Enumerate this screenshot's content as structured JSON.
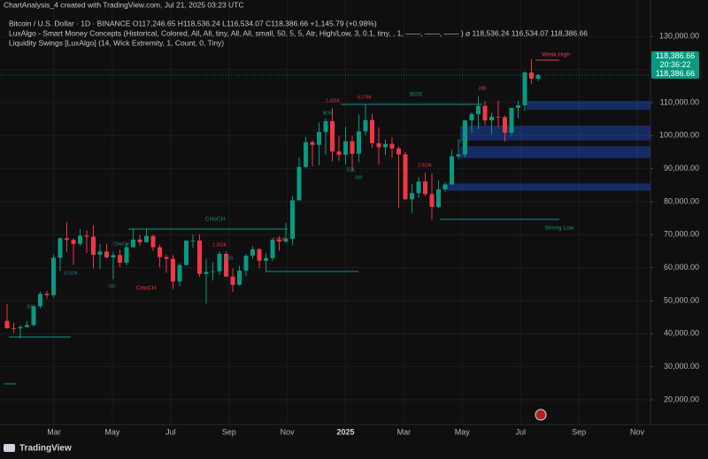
{
  "chart_data": {
    "type": "candlestick",
    "title": "ChartAnalysis_4 created with TradingView.com, Jul 21, 2025 03:23 UTC",
    "legend": [
      "Bitcoin / U.S. Dollar · 1D · BINANCE   O117,246.65 H118,536.24 L116,534.07 C118,386.66 +1,145.79 (+0.98%)",
      "LuxAlgo - Smart Money Concepts (Historical, Colored, All, All, tiny, All, All, small, 50, 5, 5, Atr, High/Low, 3, 0.1, tiny, , 1, ——, ——, —— )  ⌀  118,536.24  116,534.07  118,386.66",
      "Liquidity Swings [LuxAlgo] (14, Wick Extremity, 1, Count, 0, Tiny)"
    ],
    "footer": "TradingView",
    "up_color": "#089981",
    "down_color": "#f23645",
    "grid": true,
    "ylim": [
      12500,
      140000
    ],
    "yticks": [
      {
        "value": 20000,
        "label": "20,000.00"
      },
      {
        "value": 30000,
        "label": "30,000.00"
      },
      {
        "value": 40000,
        "label": "40,000.00"
      },
      {
        "value": 50000,
        "label": "50,000.00"
      },
      {
        "value": 60000,
        "label": "60,000.00"
      },
      {
        "value": 70000,
        "label": "70,000.00"
      },
      {
        "value": 80000,
        "label": "80,000.00"
      },
      {
        "value": 90000,
        "label": "90,000.00"
      },
      {
        "value": 100000,
        "label": "100,000.00"
      },
      {
        "value": 110000,
        "label": "110,000.00"
      },
      {
        "value": 120000,
        "label": "120,000.00"
      },
      {
        "value": 130000,
        "label": "130,000.00"
      }
    ],
    "xlabels": [
      "Mar",
      "May",
      "Jul",
      "Sep",
      "Nov",
      "2025",
      "Mar",
      "May",
      "Jul",
      "Sep",
      "Nov"
    ],
    "last_price": {
      "value": 118386.66,
      "label": "118,386.66"
    },
    "countdown": "20:36:22",
    "ohlc": [
      [
        43900,
        48900,
        41500,
        41700
      ],
      [
        41700,
        43400,
        40300,
        41600
      ],
      [
        41600,
        42600,
        38500,
        42000
      ],
      [
        42000,
        43800,
        41900,
        42600
      ],
      [
        42600,
        48500,
        42300,
        48300
      ],
      [
        48300,
        52800,
        47700,
        52100
      ],
      [
        52100,
        53000,
        50600,
        51700
      ],
      [
        51700,
        64000,
        50900,
        63000
      ],
      [
        63000,
        69200,
        59000,
        68900
      ],
      [
        68900,
        73800,
        64700,
        68400
      ],
      [
        68400,
        68900,
        60800,
        67200
      ],
      [
        67200,
        71700,
        66600,
        69700
      ],
      [
        69700,
        71300,
        64500,
        69400
      ],
      [
        69400,
        72800,
        59700,
        63900
      ],
      [
        63900,
        67200,
        59600,
        64900
      ],
      [
        64900,
        67200,
        62800,
        63100
      ],
      [
        63100,
        64800,
        56500,
        63800
      ],
      [
        63800,
        65500,
        60200,
        61500
      ],
      [
        61500,
        67400,
        60700,
        66200
      ],
      [
        66200,
        71900,
        66100,
        68500
      ],
      [
        68500,
        70000,
        66600,
        67700
      ],
      [
        67700,
        72000,
        67600,
        69600
      ],
      [
        69600,
        70000,
        65100,
        66200
      ],
      [
        66200,
        67000,
        60100,
        63200
      ],
      [
        63200,
        63900,
        58400,
        62700
      ],
      [
        62700,
        63800,
        53500,
        55800
      ],
      [
        55800,
        61400,
        54300,
        60800
      ],
      [
        60800,
        68300,
        60700,
        68200
      ],
      [
        68200,
        70000,
        65900,
        68200
      ],
      [
        68200,
        70100,
        57200,
        58100
      ],
      [
        58100,
        62700,
        49100,
        58700
      ],
      [
        58700,
        61700,
        56100,
        58900
      ],
      [
        58900,
        65000,
        57800,
        64200
      ],
      [
        64200,
        64900,
        57200,
        57300
      ],
      [
        57300,
        59800,
        52600,
        54800
      ],
      [
        54800,
        60600,
        54600,
        59100
      ],
      [
        59100,
        64100,
        57500,
        63600
      ],
      [
        63600,
        66500,
        62700,
        65600
      ],
      [
        65600,
        66000,
        59800,
        62100
      ],
      [
        62100,
        64400,
        58900,
        62900
      ],
      [
        62900,
        69000,
        62100,
        68400
      ],
      [
        68400,
        69500,
        65100,
        67900
      ],
      [
        67900,
        73600,
        67500,
        68800
      ],
      [
        68800,
        81800,
        66800,
        80400
      ],
      [
        80400,
        93400,
        80300,
        90500
      ],
      [
        90500,
        99600,
        90100,
        98000
      ],
      [
        98000,
        98600,
        90700,
        97200
      ],
      [
        97200,
        104000,
        91000,
        101100
      ],
      [
        101100,
        105200,
        94200,
        104400
      ],
      [
        104400,
        108300,
        92200,
        95200
      ],
      [
        95200,
        99900,
        92400,
        94200
      ],
      [
        94200,
        102700,
        91200,
        98300
      ],
      [
        98300,
        100000,
        89200,
        94500
      ],
      [
        94500,
        106400,
        92000,
        101300
      ],
      [
        101300,
        109600,
        100100,
        104700
      ],
      [
        104700,
        106500,
        96200,
        97700
      ],
      [
        97700,
        102500,
        91200,
        96500
      ],
      [
        96500,
        98800,
        94100,
        97500
      ],
      [
        97500,
        99500,
        93400,
        96100
      ],
      [
        96100,
        96800,
        78200,
        94300
      ],
      [
        94300,
        95000,
        80600,
        80700
      ],
      [
        80700,
        85300,
        76600,
        82600
      ],
      [
        82600,
        87400,
        81200,
        86100
      ],
      [
        86100,
        88700,
        81600,
        82300
      ],
      [
        82300,
        88500,
        74500,
        78400
      ],
      [
        78400,
        86400,
        78000,
        83700
      ],
      [
        83700,
        86000,
        83000,
        85200
      ],
      [
        85200,
        95700,
        85100,
        93700
      ],
      [
        93700,
        97900,
        92900,
        94300
      ],
      [
        94300,
        104800,
        93400,
        104600
      ],
      [
        104600,
        107100,
        100800,
        106500
      ],
      [
        106500,
        111900,
        102000,
        109000
      ],
      [
        109000,
        110400,
        103100,
        104600
      ],
      [
        104600,
        106800,
        100400,
        105700
      ],
      [
        105700,
        110600,
        102700,
        105600
      ],
      [
        105600,
        106100,
        98200,
        100900
      ],
      [
        100900,
        108500,
        100000,
        108400
      ],
      [
        108400,
        110600,
        105300,
        109200
      ],
      [
        109200,
        119500,
        107500,
        119100
      ],
      [
        119100,
        123200,
        115700,
        117250
      ],
      [
        117246.65,
        118536.24,
        116534.07,
        118386.66
      ]
    ],
    "zones": [
      {
        "top": 110500,
        "bottom": 107800
      },
      {
        "top": 103000,
        "bottom": 98500
      },
      {
        "top": 96800,
        "bottom": 93200
      },
      {
        "top": 85500,
        "bottom": 83300
      }
    ],
    "annotations": [
      "BOS",
      "CHoCH",
      "CHoCH",
      "Weak High",
      "Strong Low",
      "1.425K",
      "6.176K",
      "2.913K",
      "1.253K",
      "1.897K",
      "3.152K",
      "BOS",
      "BOS",
      "BOS",
      "CHoCH",
      "EQL",
      "EQL",
      "28B",
      "399",
      "735"
    ]
  }
}
